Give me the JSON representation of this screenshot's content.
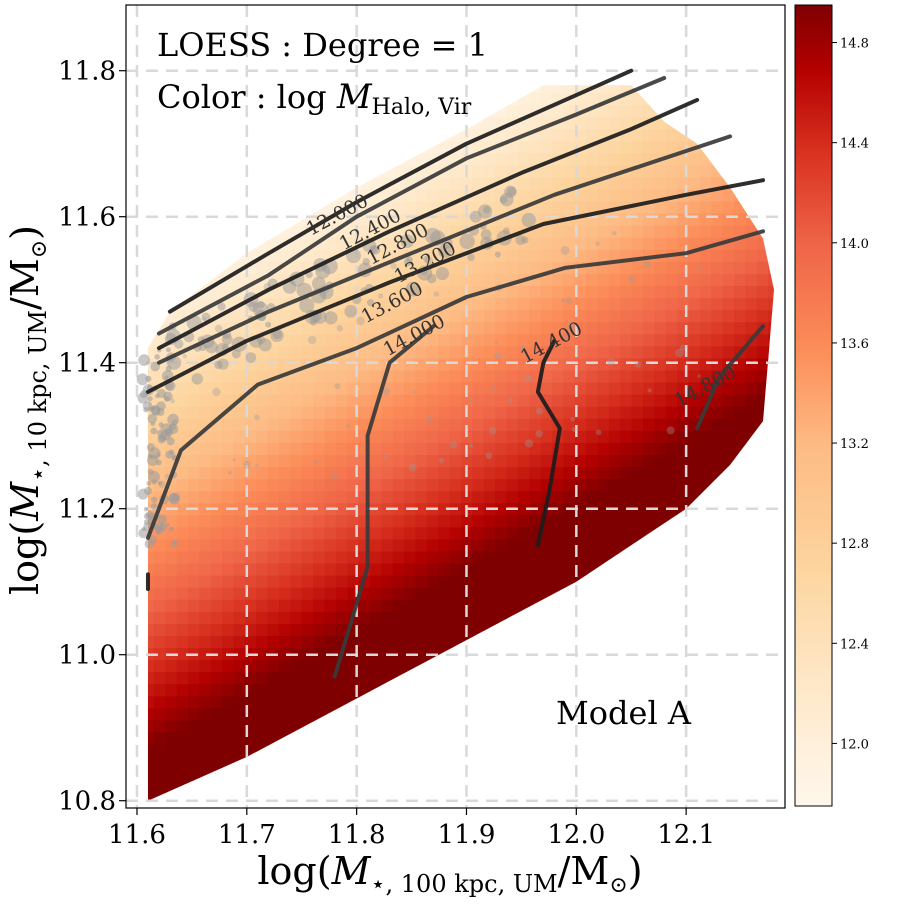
{
  "chart_data": {
    "type": "heatmap",
    "title": "",
    "annotations": {
      "method": "LOESS :  Degree = 1",
      "color_prefix": "Color :  log ",
      "color_var_main": "M",
      "color_var_sub": "Halo, Vir",
      "model": "Model A"
    },
    "xlabel": {
      "prefix": "log(",
      "main": "M",
      "sub": "⋆, 100 kpc, UM",
      "suffix": "/M",
      "sun": "⊙",
      "close": ")"
    },
    "ylabel": {
      "prefix": "log(",
      "main": "M",
      "sub": "⋆, 10 kpc, UM",
      "suffix": "/M",
      "sun": "⊙",
      "close": ")"
    },
    "xlim": [
      11.59,
      12.19
    ],
    "ylim": [
      10.79,
      11.89
    ],
    "x_ticks": [
      "11.6",
      "11.7",
      "11.8",
      "11.9",
      "12.0",
      "12.1"
    ],
    "y_ticks": [
      "10.8",
      "11.0",
      "11.2",
      "11.4",
      "11.6",
      "11.8"
    ],
    "grid": true,
    "colorbar": {
      "label": "",
      "range": [
        11.75,
        14.95
      ],
      "ticks": [
        "12.0",
        "12.4",
        "12.8",
        "13.2",
        "13.6",
        "14.0",
        "14.4",
        "14.8"
      ]
    },
    "region_lower_boundary": [
      [
        11.61,
        10.8
      ],
      [
        11.64,
        10.82
      ],
      [
        11.7,
        10.86
      ],
      [
        11.8,
        10.94
      ],
      [
        11.9,
        11.02
      ],
      [
        12.0,
        11.1
      ],
      [
        12.06,
        11.16
      ],
      [
        12.1,
        11.2
      ],
      [
        12.14,
        11.26
      ],
      [
        12.17,
        11.32
      ]
    ],
    "region_upper_boundary": [
      [
        11.61,
        11.42
      ],
      [
        11.63,
        11.47
      ],
      [
        11.7,
        11.55
      ],
      [
        11.8,
        11.64
      ],
      [
        11.9,
        11.72
      ],
      [
        11.97,
        11.78
      ],
      [
        12.05,
        11.78
      ],
      [
        12.08,
        11.73
      ],
      [
        12.11,
        11.7
      ],
      [
        12.14,
        11.64
      ],
      [
        12.17,
        11.57
      ],
      [
        12.18,
        11.5
      ]
    ],
    "color_field_model": "log M_halo ≈ 13.55 + 4.3*(x-11.9) - 5.0*(y-11.4), clipped to colorbar range",
    "contours": [
      {
        "level": "12.000",
        "points": [
          [
            11.63,
            11.47
          ],
          [
            11.72,
            11.55
          ],
          [
            11.8,
            11.62
          ],
          [
            11.9,
            11.7
          ],
          [
            11.99,
            11.76
          ],
          [
            12.05,
            11.8
          ]
        ]
      },
      {
        "level": "12.400",
        "points": [
          [
            11.62,
            11.44
          ],
          [
            11.72,
            11.52
          ],
          [
            11.8,
            11.6
          ],
          [
            11.9,
            11.68
          ],
          [
            12.0,
            11.74
          ],
          [
            12.08,
            11.79
          ]
        ]
      },
      {
        "level": "12.800",
        "points": [
          [
            11.62,
            11.42
          ],
          [
            11.72,
            11.5
          ],
          [
            11.83,
            11.58
          ],
          [
            11.95,
            11.66
          ],
          [
            12.05,
            11.72
          ],
          [
            12.11,
            11.76
          ]
        ]
      },
      {
        "level": "13.200",
        "points": [
          [
            11.62,
            11.4
          ],
          [
            11.72,
            11.47
          ],
          [
            11.85,
            11.55
          ],
          [
            11.98,
            11.63
          ],
          [
            12.1,
            11.69
          ],
          [
            12.14,
            11.71
          ]
        ]
      },
      {
        "level": "13.600",
        "points": [
          [
            11.61,
            11.36
          ],
          [
            11.7,
            11.43
          ],
          [
            11.83,
            11.51
          ],
          [
            11.97,
            11.59
          ],
          [
            12.1,
            11.63
          ],
          [
            12.17,
            11.65
          ]
        ]
      },
      {
        "level": "14.000",
        "points": [
          [
            11.61,
            11.16
          ],
          [
            11.64,
            11.28
          ],
          [
            11.71,
            11.37
          ],
          [
            11.8,
            11.42
          ],
          [
            11.9,
            11.49
          ],
          [
            11.99,
            11.53
          ],
          [
            12.1,
            11.55
          ],
          [
            12.17,
            11.58
          ]
        ]
      },
      {
        "level": "14.000",
        "points": [
          [
            11.61,
            11.09
          ],
          [
            11.61,
            11.11
          ]
        ]
      },
      {
        "level": "14.000",
        "points": [
          [
            11.78,
            10.97
          ],
          [
            11.81,
            11.12
          ],
          [
            11.81,
            11.3
          ],
          [
            11.83,
            11.4
          ],
          [
            11.87,
            11.45
          ]
        ]
      },
      {
        "level": "14.400",
        "points": [
          [
            11.965,
            11.15
          ],
          [
            11.975,
            11.22
          ],
          [
            11.985,
            11.31
          ],
          [
            11.965,
            11.36
          ],
          [
            11.97,
            11.4
          ],
          [
            11.98,
            11.43
          ]
        ]
      },
      {
        "level": "14.800",
        "points": [
          [
            12.11,
            11.31
          ],
          [
            12.13,
            11.38
          ],
          [
            12.17,
            11.45
          ]
        ]
      }
    ],
    "contour_labels": [
      {
        "text": "12.000",
        "x": 11.785,
        "y": 11.595
      },
      {
        "text": "12.400",
        "x": 11.815,
        "y": 11.575
      },
      {
        "text": "12.800",
        "x": 11.84,
        "y": 11.555
      },
      {
        "text": "13.200",
        "x": 11.865,
        "y": 11.53
      },
      {
        "text": "13.600",
        "x": 11.835,
        "y": 11.475
      },
      {
        "text": "14.000",
        "x": 11.855,
        "y": 11.43
      },
      {
        "text": "14.400",
        "x": 11.98,
        "y": 11.42
      },
      {
        "text": "14.800",
        "x": 12.12,
        "y": 11.36
      }
    ],
    "scatter": {
      "color": "#9a9a9a",
      "description_none": true,
      "count_dense": 260
    }
  }
}
